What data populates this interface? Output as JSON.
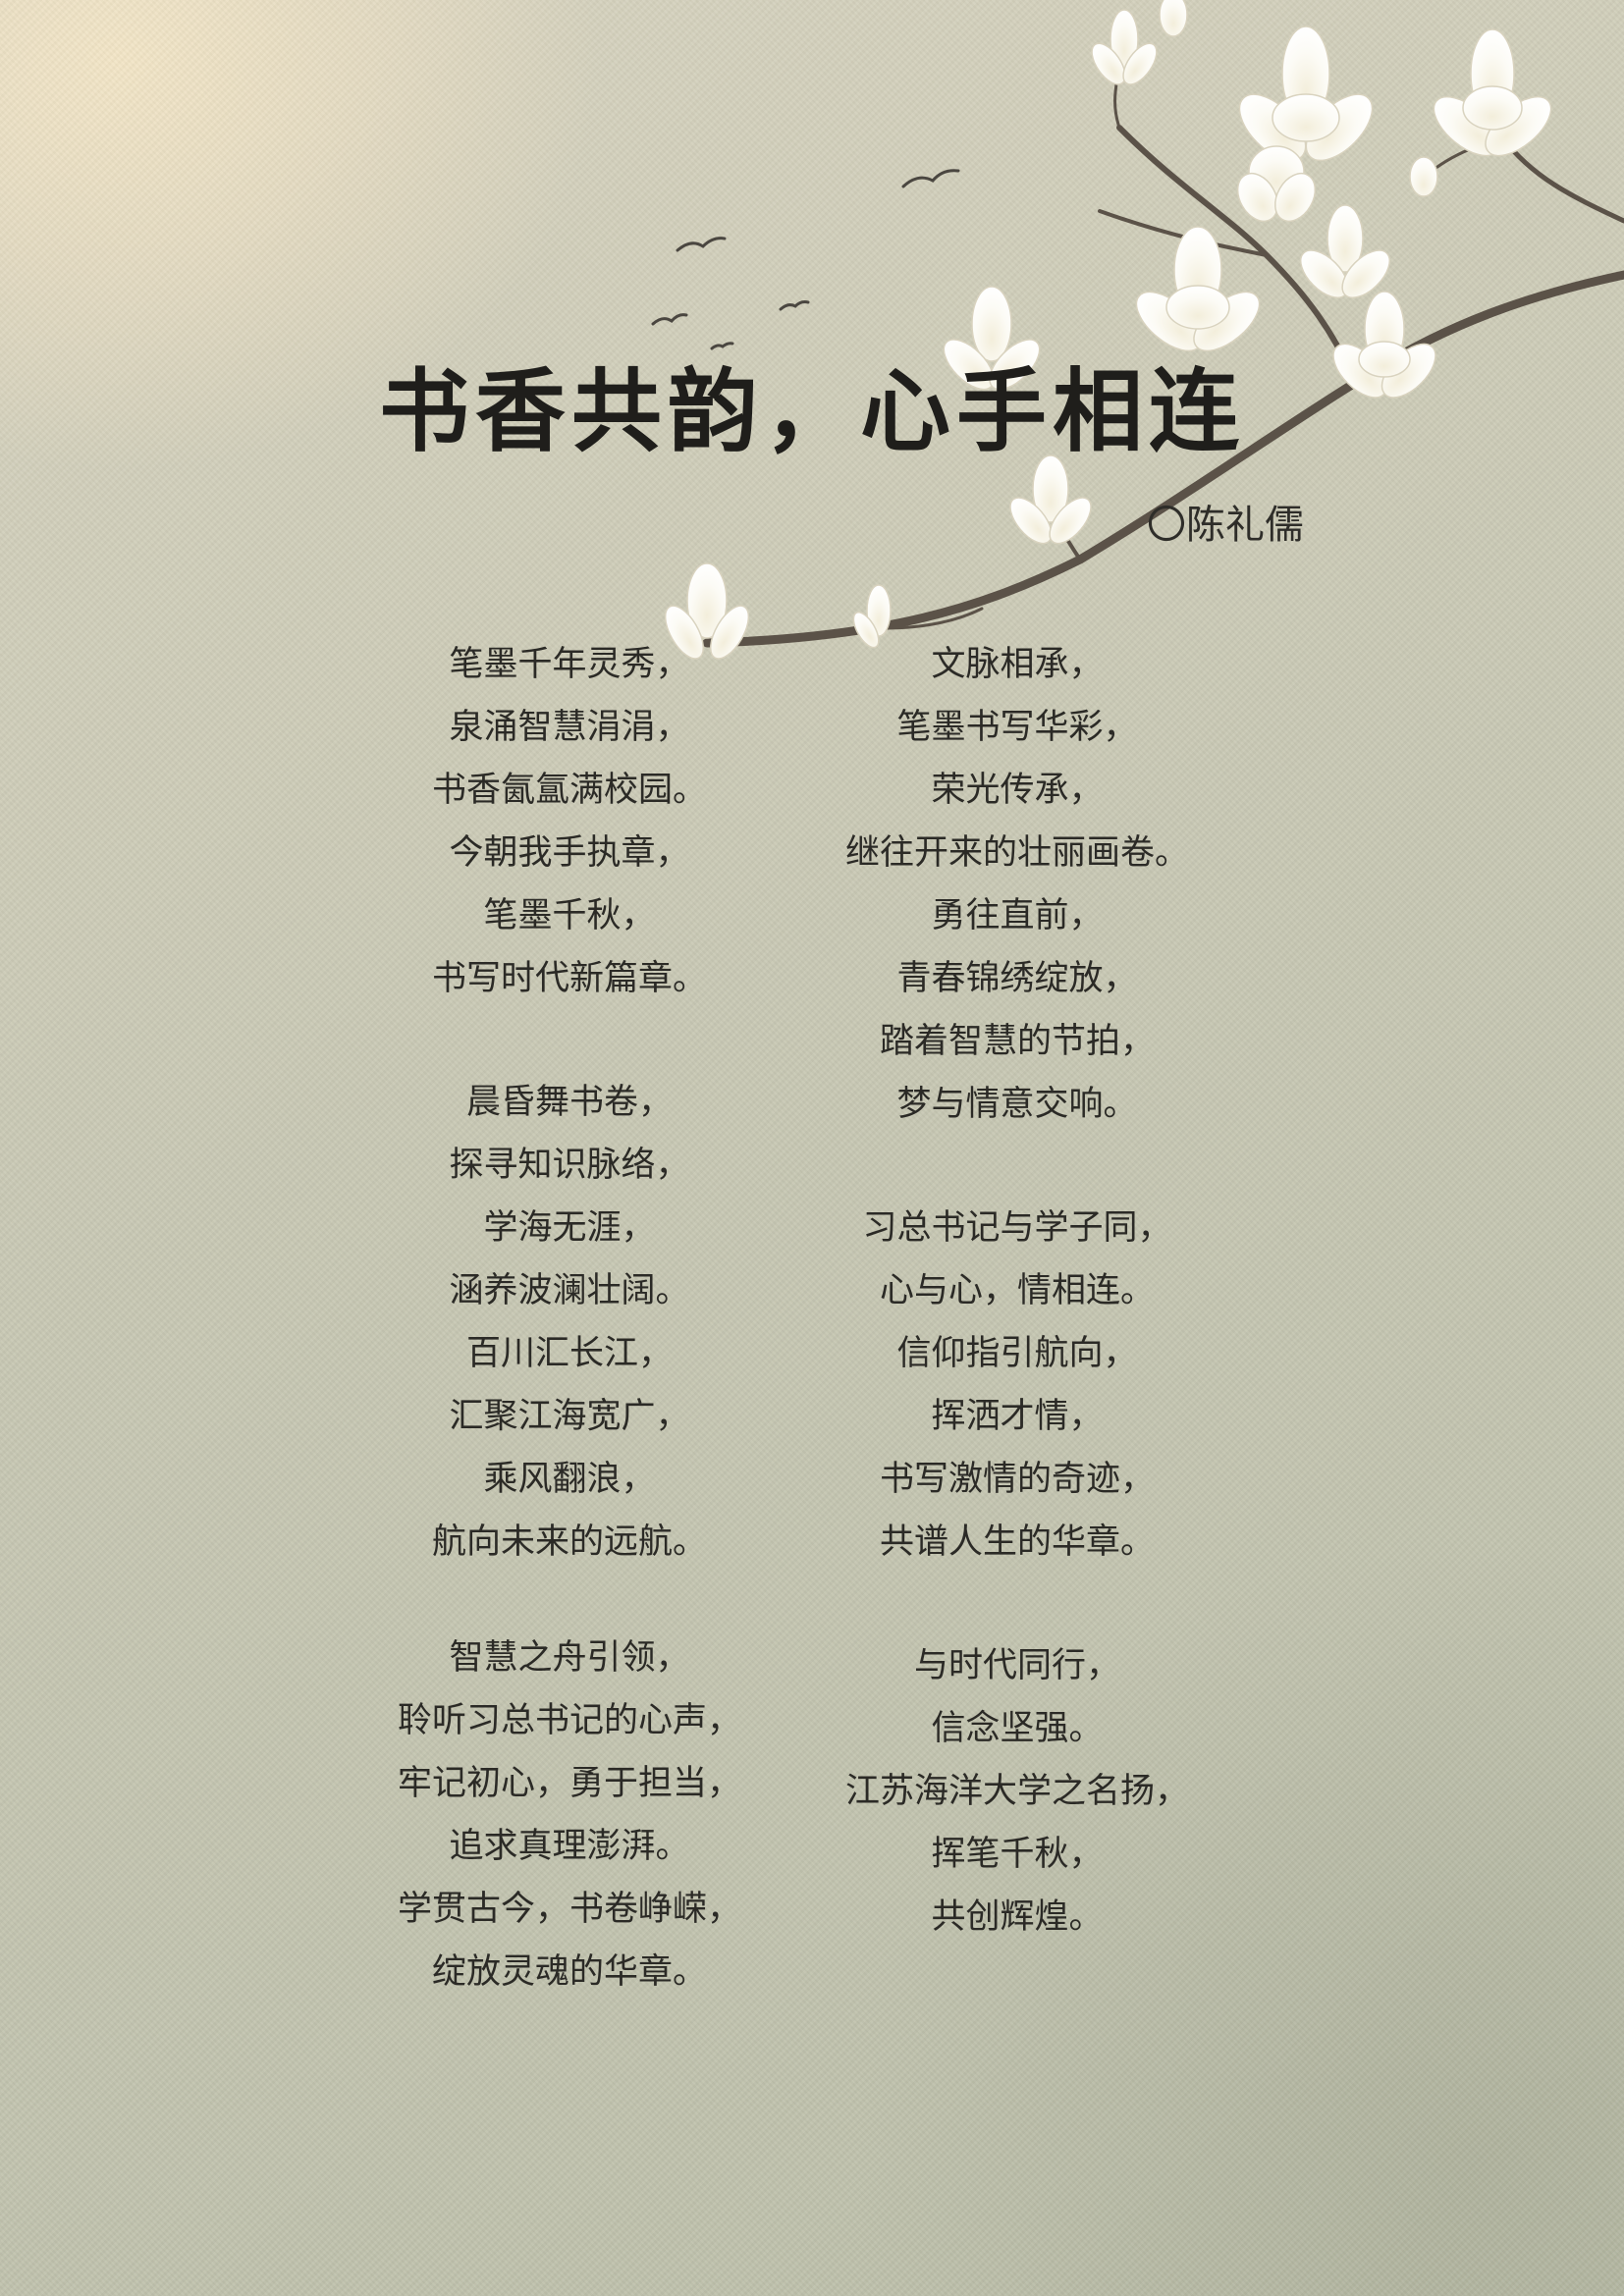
{
  "poem": {
    "title": "书香共韵，心手相连",
    "author": "〇陈礼儒",
    "left_column": [
      {
        "lines": [
          "笔墨千年灵秀，",
          "泉涌智慧涓涓，",
          "书香氤氲满校园。",
          "今朝我手执章，",
          "笔墨千秋，",
          "书写时代新篇章。"
        ]
      },
      {
        "lines": [
          "晨昏舞书卷，",
          "探寻知识脉络，",
          "学海无涯，",
          "涵养波澜壮阔。",
          "百川汇长江，",
          "汇聚江海宽广，",
          "乘风翻浪，",
          "航向未来的远航。"
        ]
      },
      {
        "lines": [
          "智慧之舟引领，",
          "聆听习总书记的心声，",
          "牢记初心，勇于担当，",
          "追求真理澎湃。",
          "学贯古今，书卷峥嵘，",
          "绽放灵魂的华章。"
        ]
      }
    ],
    "right_column": [
      {
        "lines": [
          "文脉相承，",
          "笔墨书写华彩，",
          "荣光传承，",
          "继往开来的壮丽画卷。",
          "勇往直前，",
          "青春锦绣绽放，",
          "踏着智慧的节拍，",
          "梦与情意交响。"
        ]
      },
      {
        "lines": [
          "习总书记与学子同，",
          "心与心，情相连。",
          "信仰指引航向，",
          "挥洒才情，",
          "书写激情的奇迹，",
          "共谱人生的华章。"
        ]
      },
      {
        "lines": [
          "与时代同行，",
          "信念坚强。",
          "江苏海洋大学之名扬，",
          "挥笔千秋，",
          "共创辉煌。"
        ]
      }
    ]
  },
  "decorations": {
    "branch_icon": "magnolia-branch-icon",
    "bird_icon": "flying-bird-icon",
    "branch_color": "#5b5248",
    "blossom_color": "#fbf9f2",
    "paper_color": "#c8c8b4"
  }
}
